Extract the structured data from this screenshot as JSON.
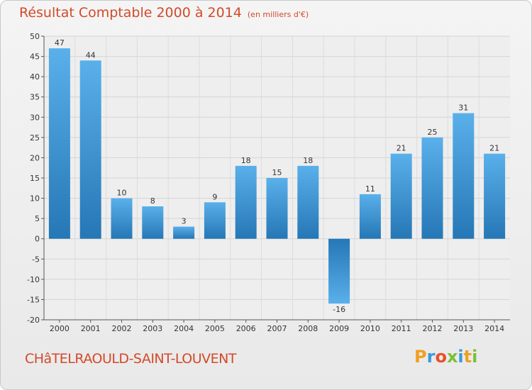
{
  "header": {
    "title": "Résultat Comptable 2000 à 2014",
    "subtitle": "(en milliers d'€)"
  },
  "footer": {
    "town": "CHâTELRAOULD-SAINT-LOUVENT",
    "logo_letters": [
      "P",
      "r",
      "o",
      "x",
      "i",
      "t",
      "i"
    ]
  },
  "colors": {
    "title": "#d24a2a",
    "bar_light": "#5ab0ea",
    "bar_dark": "#2577b5",
    "logo": [
      "#f0a020",
      "#3a9ad9",
      "#e8502c",
      "#7cbf3a",
      "#3a9ad9",
      "#f0a020",
      "#7cbf3a"
    ]
  },
  "chart_data": {
    "type": "bar",
    "title": "Résultat Comptable 2000 à 2014",
    "subtitle": "(en milliers d'€)",
    "xlabel": "",
    "ylabel": "",
    "categories": [
      "2000",
      "2001",
      "2002",
      "2003",
      "2004",
      "2005",
      "2006",
      "2007",
      "2008",
      "2009",
      "2010",
      "2011",
      "2012",
      "2013",
      "2014"
    ],
    "values": [
      47,
      44,
      10,
      8,
      3,
      9,
      18,
      15,
      18,
      -16,
      11,
      21,
      25,
      31,
      21
    ],
    "value_labels": [
      "47",
      "44",
      "10",
      "8",
      "3",
      "9",
      "18",
      "15",
      "18",
      "-16",
      "11",
      "21",
      "25",
      "31",
      "21"
    ],
    "ylim": [
      -20,
      50
    ],
    "yticks": [
      50,
      45,
      40,
      35,
      30,
      25,
      20,
      15,
      10,
      5,
      0,
      -5,
      -10,
      -15,
      -20
    ],
    "grid": true
  }
}
